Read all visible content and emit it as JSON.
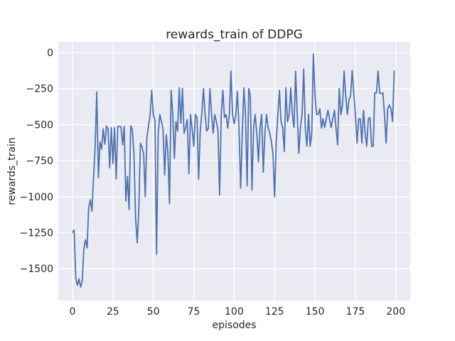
{
  "figure": {
    "title": "rewards_train of DDPG",
    "xlabel": "episodes",
    "ylabel": "rewards_train"
  },
  "chart_data": {
    "type": "line",
    "title": "rewards_train of DDPG",
    "xlabel": "episodes",
    "ylabel": "rewards_train",
    "x_start": 0,
    "x_step": 1,
    "values": [
      -1247,
      -1232,
      -1565,
      -1615,
      -1570,
      -1628,
      -1585,
      -1360,
      -1300,
      -1355,
      -1080,
      -1022,
      -1100,
      -870,
      -660,
      -273,
      -870,
      -620,
      -670,
      -530,
      -635,
      -510,
      -530,
      -800,
      -520,
      -770,
      -520,
      -876,
      -512,
      -515,
      -515,
      -640,
      -512,
      -1030,
      -860,
      -1090,
      -508,
      -533,
      -700,
      -1150,
      -1320,
      -1100,
      -630,
      -655,
      -705,
      -1000,
      -590,
      -510,
      -430,
      -262,
      -435,
      -470,
      -1400,
      -565,
      -430,
      -480,
      -530,
      -850,
      -570,
      -700,
      -1050,
      -262,
      -430,
      -735,
      -480,
      -545,
      -245,
      -490,
      -250,
      -560,
      -520,
      -465,
      -840,
      -430,
      -530,
      -650,
      -430,
      -450,
      -880,
      -550,
      -420,
      -250,
      -430,
      -545,
      -525,
      -250,
      -430,
      -560,
      -430,
      -480,
      -545,
      -990,
      -430,
      -262,
      -450,
      -430,
      -525,
      -430,
      -128,
      -430,
      -495,
      -430,
      -270,
      -520,
      -940,
      -560,
      -245,
      -430,
      -925,
      -250,
      -300,
      -955,
      -520,
      -430,
      -560,
      -760,
      -520,
      -430,
      -830,
      -560,
      -430,
      -520,
      -560,
      -620,
      -700,
      -1000,
      -620,
      -430,
      -262,
      -480,
      -520,
      -687,
      -244,
      -480,
      -430,
      -245,
      -430,
      -520,
      -130,
      -430,
      -700,
      -520,
      -430,
      -115,
      -520,
      -650,
      -430,
      -650,
      -560,
      -10,
      -300,
      -430,
      -428,
      -390,
      -525,
      -460,
      -520,
      -460,
      -400,
      -460,
      -520,
      -460,
      -400,
      -520,
      -640,
      -250,
      -430,
      -370,
      -128,
      -300,
      -430,
      -330,
      -300,
      -124,
      -280,
      -430,
      -628,
      -460,
      -460,
      -628,
      -400,
      -560,
      -650,
      -460,
      -450,
      -650,
      -650,
      -280,
      -280,
      -128,
      -280,
      -285,
      -280,
      -430,
      -628,
      -390,
      -365,
      -390,
      -478,
      -128
    ],
    "xticks": [
      0,
      25,
      50,
      75,
      100,
      125,
      150,
      175,
      200
    ],
    "xtick_labels": [
      "0",
      "25",
      "50",
      "75",
      "100",
      "125",
      "150",
      "175",
      "200"
    ],
    "yticks": [
      0,
      -250,
      -500,
      -750,
      -1000,
      -1250,
      -1500
    ],
    "ytick_labels": [
      "0",
      "−250",
      "−500",
      "−750",
      "−1000",
      "−1250",
      "−1500"
    ],
    "xlim": [
      -8.8,
      208.9
    ],
    "ylim": [
      -1721,
      74
    ],
    "grid": true,
    "legend_position": "none",
    "colors": {
      "line": "#4c72b0",
      "plot_background": "#eaeaf2",
      "figure_background": "#ffffff",
      "grid": "#ffffff",
      "text": "#262626"
    }
  }
}
